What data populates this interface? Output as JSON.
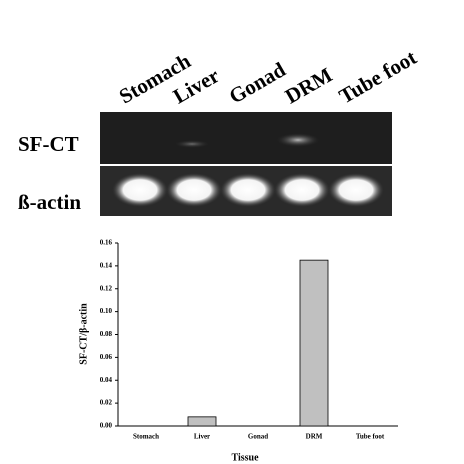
{
  "gel": {
    "lanes": [
      "Stomach",
      "Liver",
      "Gonad",
      "DRM",
      "Tube foot"
    ],
    "rows": [
      "SF-CT",
      "ß-actin"
    ]
  },
  "chart_data": {
    "type": "bar",
    "x_label": "Tissue",
    "y_label": "SF-CT/β-actin",
    "categories": [
      "Stomach",
      "Liver",
      "Gonad",
      "DRM",
      "Tube foot"
    ],
    "values": [
      0,
      0.008,
      0,
      0.145,
      0
    ],
    "color": "#c0c0c0",
    "ylim": [
      0,
      0.16
    ],
    "yticks": [
      {
        "value": 0,
        "label": "0.00"
      },
      {
        "value": 0.02,
        "label": "0.02"
      },
      {
        "value": 0.04,
        "label": "0.04"
      },
      {
        "value": 0.06,
        "label": "0.06"
      },
      {
        "value": 0.08,
        "label": "0.08"
      },
      {
        "value": 0.1,
        "label": "0.10"
      },
      {
        "value": 0.12,
        "label": "0.12"
      },
      {
        "value": 0.14,
        "label": "0.14"
      },
      {
        "value": 0.16,
        "label": "0.16"
      }
    ]
  }
}
